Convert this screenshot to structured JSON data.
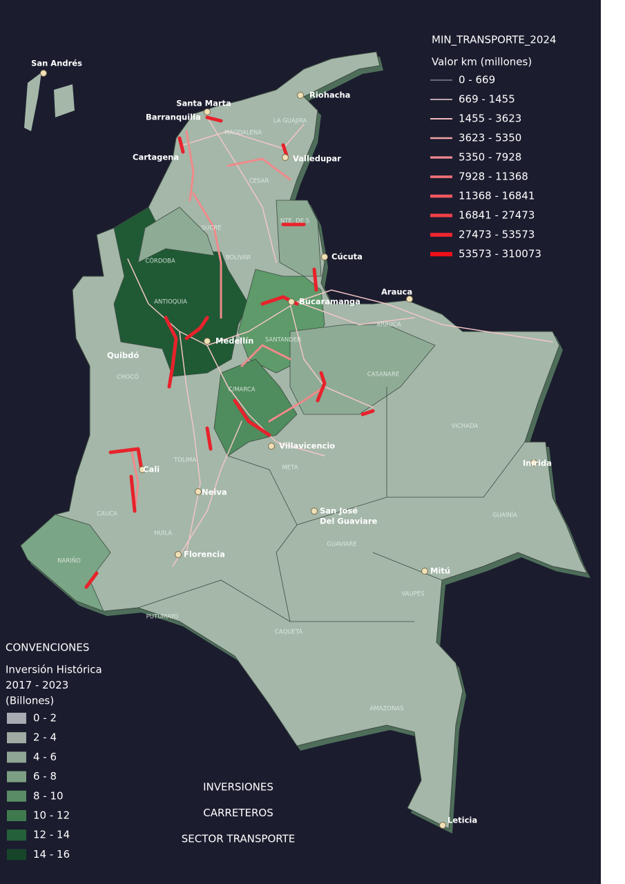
{
  "title": {
    "lines": [
      "INVERSIONES",
      "CARRETEROS",
      "SECTOR TRANSPORTE"
    ]
  },
  "road_legend": {
    "title": "MIN_TRANSPORTE_2024",
    "subtitle": "Valor km (millones)",
    "items": [
      "0 - 669",
      "669 - 1455",
      "1455 - 3623",
      "3623 - 5350",
      "5350 - 7928",
      "7928 - 11368",
      "11368 - 16841",
      "16841 - 27473",
      "27473 - 53573",
      "53573 - 310073"
    ]
  },
  "region_legend": {
    "title": "CONVENCIONES",
    "subtitle": [
      "Inversión Histórica",
      "2017 - 2023",
      "(Billones)"
    ],
    "items": [
      "0 - 2",
      "2 - 4",
      "4 - 6",
      "6 - 8",
      "8 - 10",
      "10 - 12",
      "12 - 14",
      "14 - 16"
    ]
  },
  "cities": [
    "San Andrés",
    "Santa Marta",
    "Barranquilla",
    "Cartagena",
    "Riohacha",
    "Valledupar",
    "Cúcuta",
    "Arauca",
    "Bucaramanga",
    "Medellín",
    "Quibdó",
    "Villavicencio",
    "Inírida",
    "San José",
    "Del Guaviare",
    "Mitú",
    "Cali",
    "Neiva",
    "Florencia",
    "Leticia"
  ],
  "departments": [
    "LA GUAJIRA",
    "MAGDALENA",
    "CESAR",
    "SUCRE",
    "CÓRDOBA",
    "BOLÍVAR",
    "NTE. DE S",
    "ANTIOQUIA",
    "SANTANDER",
    "ARAUCA",
    "CHOCÓ",
    "CASANARE",
    "C/MARCA",
    "VICHADA",
    "META",
    "TOLIMA",
    "CAUCA",
    "HUILA",
    "GUAVIARE",
    "GUAINÍA",
    "VAUPÉS",
    "NARIÑO",
    "PUTUMAYO",
    "CAQUETÁ",
    "AMAZONAS"
  ]
}
